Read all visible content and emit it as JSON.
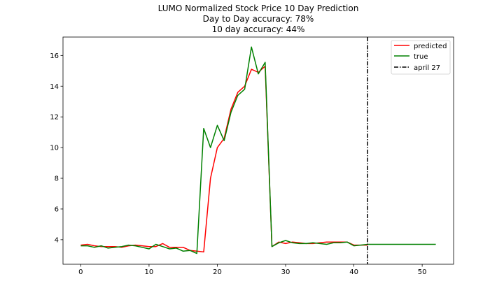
{
  "chart_data": {
    "type": "line",
    "title": "LUMO Normalized Stock Price 10 Day Prediction",
    "subtitle_lines": [
      "Day to Day accuracy: 78%",
      "10 day accuracy: 44%"
    ],
    "xlabel": "",
    "ylabel": "",
    "xlim": [
      -2.6,
      54.6
    ],
    "ylim": [
      2.4,
      17.2
    ],
    "xticks": [
      0,
      10,
      20,
      30,
      40,
      50
    ],
    "yticks": [
      4,
      6,
      8,
      10,
      12,
      14,
      16
    ],
    "grid": false,
    "legend_position": "top-right",
    "series": [
      {
        "name": "predicted",
        "color": "#ff0000",
        "x": [
          0,
          1,
          2,
          3,
          4,
          5,
          6,
          7,
          8,
          9,
          10,
          11,
          12,
          13,
          14,
          15,
          16,
          17,
          18,
          19,
          20,
          21,
          22,
          23,
          24,
          25,
          26,
          27,
          28,
          29,
          30,
          31,
          32,
          33,
          34,
          35,
          36,
          37,
          38,
          39,
          40,
          41,
          42
        ],
        "values": [
          3.65,
          3.7,
          3.6,
          3.55,
          3.55,
          3.55,
          3.5,
          3.6,
          3.65,
          3.6,
          3.55,
          3.55,
          3.75,
          3.5,
          3.5,
          3.5,
          3.3,
          3.25,
          3.2,
          8.0,
          10.0,
          10.6,
          12.5,
          13.6,
          14.0,
          15.1,
          14.9,
          15.3,
          3.55,
          3.85,
          3.75,
          3.85,
          3.8,
          3.75,
          3.75,
          3.8,
          3.85,
          3.85,
          3.85,
          3.85,
          3.65,
          3.65,
          3.65
        ]
      },
      {
        "name": "true",
        "color": "#008000",
        "x": [
          0,
          1,
          2,
          3,
          4,
          5,
          6,
          7,
          8,
          9,
          10,
          11,
          12,
          13,
          14,
          15,
          16,
          17,
          18,
          19,
          20,
          21,
          22,
          23,
          24,
          25,
          26,
          27,
          28,
          29,
          30,
          31,
          32,
          33,
          34,
          35,
          36,
          37,
          38,
          39,
          40,
          41,
          42,
          43,
          44,
          45,
          46,
          47,
          48,
          49,
          50,
          51,
          52
        ],
        "values": [
          3.6,
          3.6,
          3.5,
          3.6,
          3.45,
          3.5,
          3.55,
          3.65,
          3.6,
          3.5,
          3.4,
          3.7,
          3.55,
          3.4,
          3.45,
          3.25,
          3.3,
          3.1,
          11.25,
          10.0,
          11.45,
          10.45,
          12.3,
          13.4,
          13.8,
          16.55,
          14.8,
          15.55,
          3.55,
          3.8,
          3.95,
          3.8,
          3.75,
          3.75,
          3.8,
          3.75,
          3.7,
          3.8,
          3.8,
          3.85,
          3.6,
          3.65,
          3.7,
          3.7,
          3.7,
          3.7,
          3.7,
          3.7,
          3.7,
          3.7,
          3.7,
          3.7,
          3.7
        ]
      }
    ],
    "vlines": [
      {
        "name": "april 27",
        "x": 42,
        "color": "#000000",
        "style": "dashdot"
      }
    ]
  }
}
